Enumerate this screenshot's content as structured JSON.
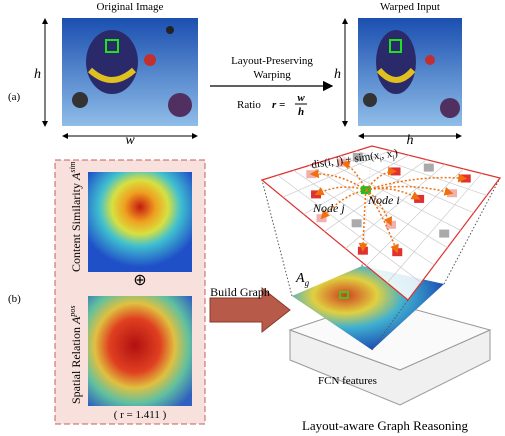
{
  "panel_a": {
    "label": "(a)",
    "original_title": "Original Image",
    "warped_title": "Warped Input",
    "dim_left": "h",
    "dim_bottom_original": "w",
    "dim_left_warped": "h",
    "dim_bottom_warped": "h",
    "arrow_label_line1": "Layout-Preserving",
    "arrow_label_line2": "Warping",
    "ratio_label": "Ratio",
    "ratio_lhs": "r =",
    "ratio_num": "w",
    "ratio_den": "h"
  },
  "panel_b": {
    "label": "(b)",
    "content_similarity": {
      "text": "Content Similarity ",
      "symbol": "A",
      "sup": "sim"
    },
    "spatial_relation": {
      "text": "Spatial Relation ",
      "symbol": "A",
      "sup": "pos"
    },
    "combine": "⊕",
    "ratio_note": "( r = 1.411 )",
    "arrow_label": "Build Graph",
    "edge_formula": "dis(i, j) + sim(x",
    "edge_formula_sub1": "i",
    "edge_formula_mid": ", x",
    "edge_formula_sub2": "j",
    "edge_formula_end": ")",
    "node_j": "Node j",
    "node_i": "Node i",
    "graph_symbol": "A",
    "graph_sub": "g",
    "fcn_label": "FCN features",
    "caption": "Layout-aware Graph Reasoning"
  }
}
